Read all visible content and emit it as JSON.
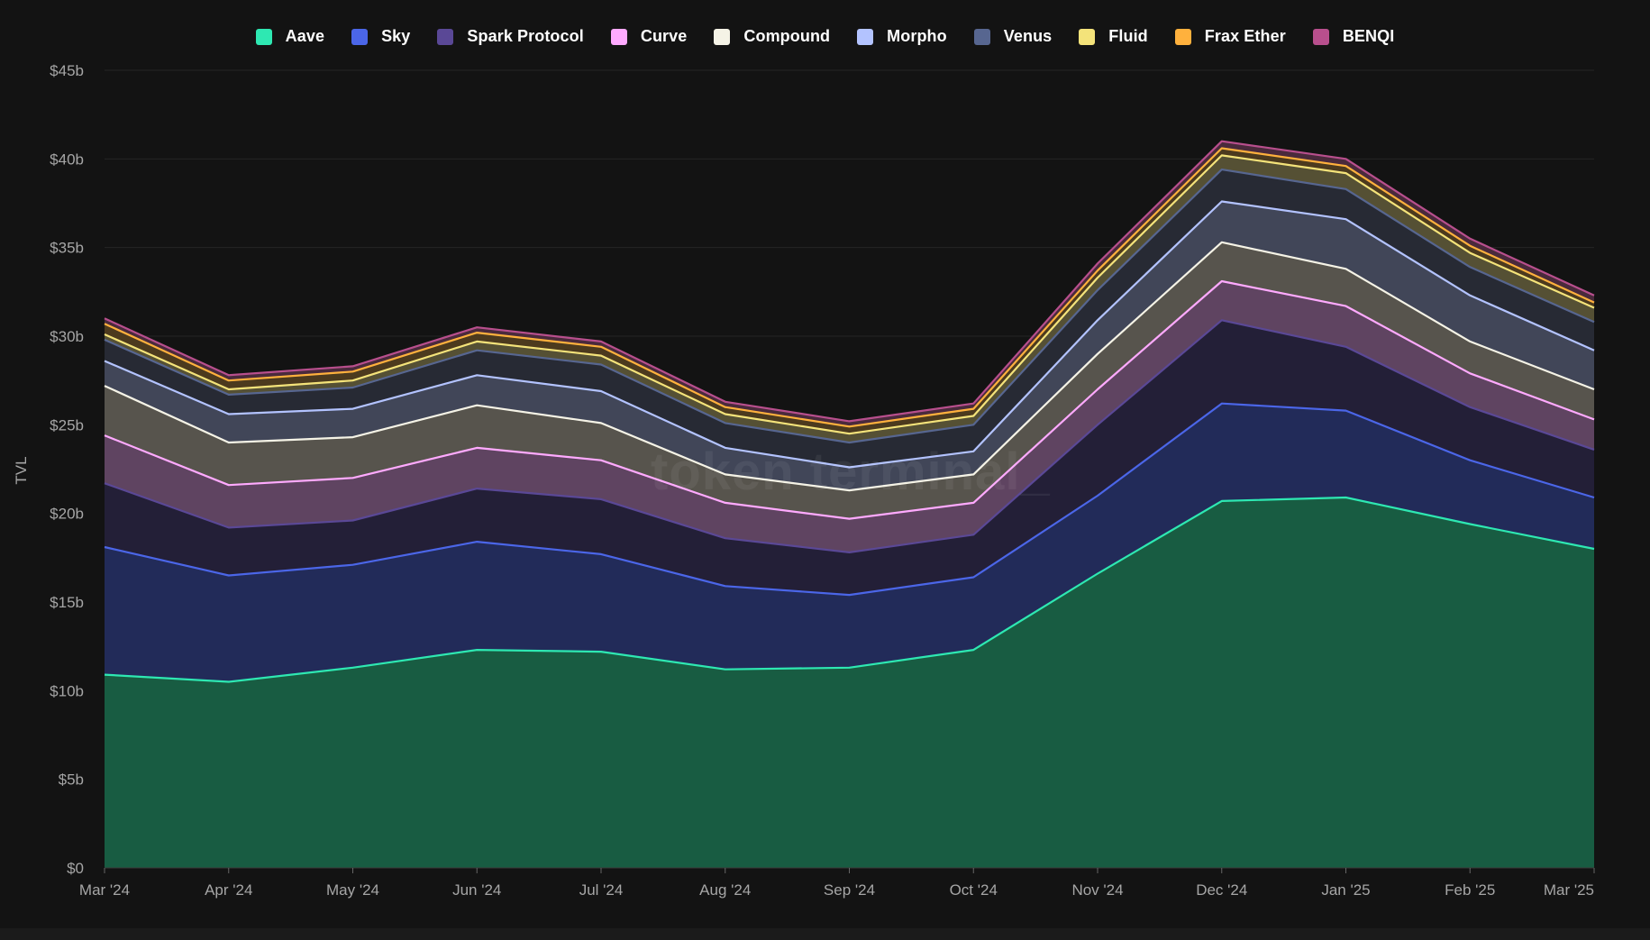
{
  "watermark": "token terminal_",
  "chart_data": {
    "type": "area",
    "stacked": true,
    "title": "",
    "xlabel": "",
    "ylabel": "TVL",
    "ylim": [
      0,
      45
    ],
    "y_ticks": [
      0,
      5,
      10,
      15,
      20,
      25,
      30,
      35,
      40,
      45
    ],
    "y_tick_labels": [
      "$0",
      "$5b",
      "$10b",
      "$15b",
      "$20b",
      "$25b",
      "$30b",
      "$35b",
      "$40b",
      "$45b"
    ],
    "categories": [
      "Mar '24",
      "Apr '24",
      "May '24",
      "Jun '24",
      "Jul '24",
      "Aug '24",
      "Sep '24",
      "Oct '24",
      "Nov '24",
      "Dec '24",
      "Jan '25",
      "Feb '25",
      "Mar '25"
    ],
    "legend_position": "top-center",
    "grid": true,
    "series": [
      {
        "name": "Aave",
        "color": "#2ee8b2",
        "fill": "#185c42",
        "values": [
          10.9,
          10.5,
          11.3,
          12.3,
          12.2,
          11.2,
          11.3,
          12.3,
          16.6,
          20.7,
          20.9,
          19.4,
          18.0
        ]
      },
      {
        "name": "Sky",
        "color": "#4b66e8",
        "fill": "#222b59",
        "values": [
          7.2,
          6.0,
          5.8,
          6.1,
          5.5,
          4.7,
          4.1,
          4.1,
          4.4,
          5.5,
          4.9,
          3.6,
          2.9
        ]
      },
      {
        "name": "Spark Protocol",
        "color": "#5a4896",
        "fill": "#231f37",
        "values": [
          3.6,
          2.7,
          2.5,
          3.0,
          3.1,
          2.7,
          2.4,
          2.4,
          4.0,
          4.7,
          3.6,
          3.0,
          2.7
        ]
      },
      {
        "name": "Curve",
        "color": "#ffaaff",
        "fill": "#5f4461",
        "values": [
          2.7,
          2.4,
          2.4,
          2.3,
          2.2,
          2.0,
          1.9,
          1.8,
          2.0,
          2.2,
          2.3,
          1.9,
          1.7
        ]
      },
      {
        "name": "Compound",
        "color": "#f5f3e6",
        "fill": "#57544d",
        "values": [
          2.8,
          2.4,
          2.3,
          2.4,
          2.1,
          1.6,
          1.6,
          1.6,
          2.0,
          2.2,
          2.1,
          1.8,
          1.7
        ]
      },
      {
        "name": "Morpho",
        "color": "#b3c3ff",
        "fill": "#414658",
        "values": [
          1.4,
          1.6,
          1.6,
          1.7,
          1.8,
          1.5,
          1.3,
          1.3,
          1.9,
          2.3,
          2.8,
          2.6,
          2.2
        ]
      },
      {
        "name": "Venus",
        "color": "#576690",
        "fill": "#272a34",
        "values": [
          1.2,
          1.1,
          1.2,
          1.4,
          1.5,
          1.4,
          1.4,
          1.5,
          1.7,
          1.8,
          1.7,
          1.6,
          1.6
        ]
      },
      {
        "name": "Fluid",
        "color": "#f4e37a",
        "fill": "#555034",
        "values": [
          0.3,
          0.3,
          0.4,
          0.5,
          0.5,
          0.5,
          0.5,
          0.5,
          0.7,
          0.8,
          0.9,
          0.8,
          0.8
        ]
      },
      {
        "name": "Frax Ether",
        "color": "#ffb13d",
        "fill": "#4c3a1e",
        "values": [
          0.6,
          0.5,
          0.5,
          0.5,
          0.5,
          0.4,
          0.4,
          0.4,
          0.4,
          0.4,
          0.4,
          0.4,
          0.3
        ]
      },
      {
        "name": "BENQI",
        "color": "#b84f8d",
        "fill": "#4a2a3c",
        "values": [
          0.3,
          0.3,
          0.3,
          0.3,
          0.3,
          0.3,
          0.3,
          0.3,
          0.4,
          0.4,
          0.4,
          0.4,
          0.4
        ]
      }
    ]
  }
}
